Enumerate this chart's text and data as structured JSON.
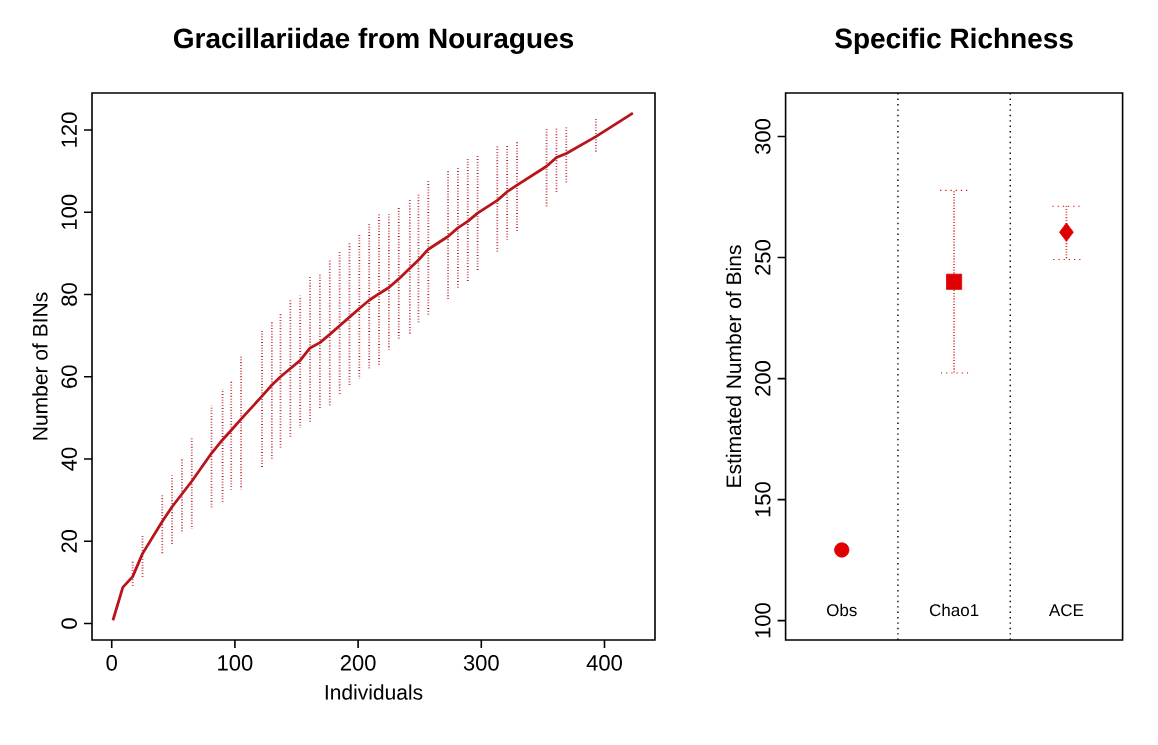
{
  "chart_data": [
    {
      "type": "line",
      "title": "Gracillariidae from Nouragues",
      "xlabel": "Individuals",
      "ylabel": "Number of BINs",
      "x": [
        1,
        9,
        17,
        25,
        41,
        49,
        57,
        65,
        81,
        90,
        97,
        105,
        122,
        130,
        137,
        145,
        153,
        161,
        169,
        177,
        185,
        193,
        201,
        209,
        217,
        225,
        233,
        242,
        249,
        257,
        273,
        281,
        289,
        297,
        313,
        321,
        329,
        353,
        361,
        369,
        393,
        423
      ],
      "series": [
        {
          "color": "#b8141c",
          "values": [
            0.8,
            8.8,
            11.4,
            17,
            24.8,
            28.4,
            31.5,
            34.6,
            41.4,
            44.7,
            47,
            49.7,
            55.3,
            58,
            60,
            62,
            64,
            67,
            68.3,
            70.3,
            72.4,
            74.5,
            76.6,
            78.6,
            80.2,
            81.7,
            83.8,
            86.4,
            88.4,
            91,
            94.1,
            96.2,
            97.8,
            99.8,
            102.9,
            105,
            106.6,
            111.2,
            113.3,
            114.3,
            118.4,
            124.1
          ],
          "errors": [
            null,
            null,
            [
              8.8,
              15.5
            ],
            [
              11.4,
              21.7
            ],
            [
              17,
              31.6
            ],
            [
              19,
              36
            ],
            [
              22,
              40
            ],
            [
              23,
              45
            ],
            [
              28,
              53
            ],
            [
              29.5,
              57
            ],
            [
              32.6,
              59
            ],
            [
              32.6,
              65
            ],
            [
              37.8,
              71.4
            ],
            [
              39.8,
              73.5
            ],
            [
              42.4,
              75.7
            ],
            [
              45.5,
              78.6
            ],
            [
              47.6,
              79.7
            ],
            [
              49,
              84.2
            ],
            [
              52.2,
              84.8
            ],
            [
              52.8,
              88.6
            ],
            [
              55.9,
              90.5
            ],
            [
              58,
              92.6
            ],
            [
              59.5,
              94.7
            ],
            [
              61.6,
              97.2
            ],
            [
              62.6,
              99.8
            ],
            [
              66.6,
              99.5
            ],
            [
              68.8,
              101.4
            ],
            [
              70.3,
              103.4
            ],
            [
              73,
              104.5
            ],
            [
              75,
              107.6
            ],
            [
              78.6,
              110.3
            ],
            [
              81.2,
              111.2
            ],
            [
              82.8,
              113
            ],
            [
              85.9,
              113.8
            ],
            [
              90.2,
              116
            ],
            [
              93.3,
              116.4
            ],
            [
              95.2,
              117.2
            ],
            [
              101.4,
              120.5
            ],
            [
              104.5,
              120.5
            ],
            [
              107.1,
              121
            ],
            [
              114.3,
              123.1
            ],
            null
          ]
        }
      ],
      "xlim": [
        -16,
        441
      ],
      "ylim": [
        -4,
        129
      ],
      "xticks": [
        0,
        100,
        200,
        300,
        400
      ],
      "yticks": [
        0,
        20,
        40,
        60,
        80,
        100,
        120
      ]
    },
    {
      "type": "scatter",
      "title": "Specific Richness",
      "ylabel": "Estimated Number of Bins",
      "categories": [
        "Obs",
        "Chao1",
        "ACE"
      ],
      "series": [
        {
          "color": "#e00000",
          "marker": "circle",
          "values": [
            129.2,
            null,
            null
          ]
        },
        {
          "color": "#e00000",
          "marker": "square",
          "values": [
            null,
            240,
            null
          ],
          "errors": [
            null,
            [
              202.3,
              277.8
            ],
            null
          ]
        },
        {
          "color": "#e00000",
          "marker": "diamond",
          "values": [
            null,
            null,
            260.5
          ],
          "errors": [
            null,
            null,
            [
              249.2,
              271.2
            ]
          ]
        }
      ],
      "ylim": [
        92,
        318
      ],
      "yticks": [
        100,
        150,
        200,
        250,
        300
      ]
    }
  ]
}
